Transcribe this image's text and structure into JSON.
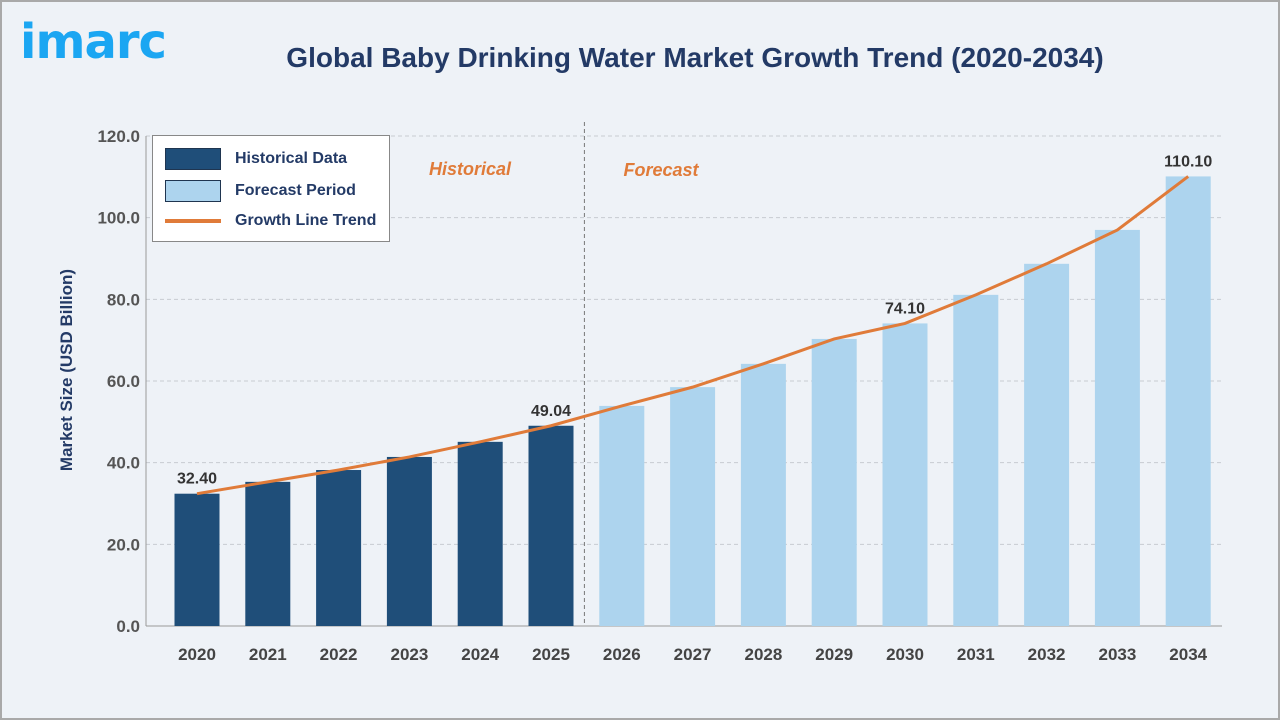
{
  "logo_text": "imarc",
  "chart_data": {
    "type": "bar",
    "title": "Global Baby Drinking Water Market Growth Trend (2020-2034)",
    "ylabel": "Market Size (USD Billion)",
    "xlabel": "",
    "ylim": [
      0,
      120
    ],
    "yticks": [
      "0.0",
      "20.0",
      "40.0",
      "60.0",
      "80.0",
      "100.0",
      "120.0"
    ],
    "grid": true,
    "legend_position": "top-left",
    "categories": [
      "2020",
      "2021",
      "2022",
      "2023",
      "2024",
      "2025",
      "2026",
      "2027",
      "2028",
      "2029",
      "2030",
      "2031",
      "2032",
      "2033",
      "2034"
    ],
    "series": [
      {
        "name": "Historical Data",
        "color": "#1f4e79",
        "values": [
          32.4,
          35.3,
          38.2,
          41.4,
          45.1,
          49.04,
          null,
          null,
          null,
          null,
          null,
          null,
          null,
          null,
          null
        ]
      },
      {
        "name": "Forecast Period",
        "color": "#add4ee",
        "values": [
          null,
          null,
          null,
          null,
          null,
          null,
          53.9,
          58.5,
          64.2,
          70.3,
          74.1,
          81.1,
          88.7,
          97.0,
          110.1
        ]
      },
      {
        "name": "Growth Line Trend",
        "color": "#e07b39",
        "type": "line",
        "values": [
          32.4,
          35.3,
          38.2,
          41.4,
          45.1,
          49.04,
          53.9,
          58.5,
          64.2,
          70.3,
          74.1,
          81.1,
          88.7,
          97.0,
          110.1
        ]
      }
    ],
    "data_labels": {
      "2020": "32.40",
      "2025": "49.04",
      "2030": "74.10",
      "2034": "110.10"
    },
    "annotations": {
      "historical": "Historical",
      "forecast": "Forecast"
    }
  }
}
